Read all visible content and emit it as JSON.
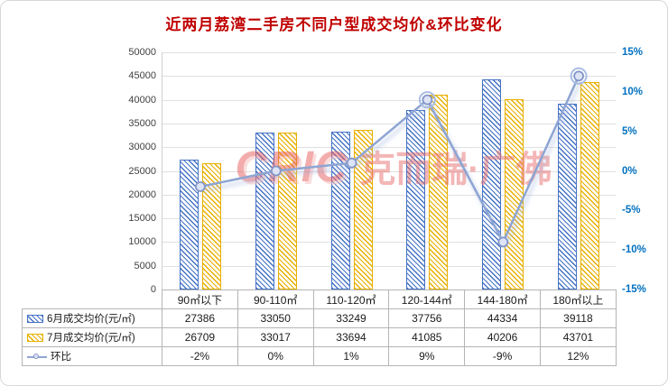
{
  "title": "近两月荔湾二手房不同户型成交均价&环比变化",
  "watermark": {
    "logo": "CRIC",
    "text": "克而瑞·广佛"
  },
  "chart_data": {
    "type": "combo-bar-line",
    "title": "近两月荔湾二手房不同户型成交均价&环比变化",
    "categories": [
      "90㎡以下",
      "90-110㎡",
      "110-120㎡",
      "120-144㎡",
      "144-180㎡",
      "180㎡以上"
    ],
    "series": [
      {
        "name": "6月成交均价(元/㎡)",
        "type": "bar",
        "color": "#4472c4",
        "values": [
          27386,
          33050,
          33249,
          37756,
          44334,
          39118
        ]
      },
      {
        "name": "7月成交均价(元/㎡)",
        "type": "bar",
        "color": "#e7af00",
        "values": [
          26709,
          33017,
          33694,
          41085,
          40206,
          43701
        ]
      },
      {
        "name": "环比",
        "type": "line",
        "color": "#8ea5d3",
        "values_pct": [
          -2,
          0,
          1,
          9,
          -9,
          12
        ],
        "labels": [
          "-2%",
          "0%",
          "1%",
          "9%",
          "-9%",
          "12%"
        ]
      }
    ],
    "left_axis": {
      "min": 0,
      "max": 50000,
      "step": 5000,
      "tick_labels": [
        "50000",
        "45000",
        "40000",
        "35000",
        "30000",
        "25000",
        "20000",
        "15000",
        "10000",
        "5000",
        "0"
      ]
    },
    "right_axis": {
      "min": -15,
      "max": 15,
      "step": 5,
      "tick_labels": [
        "15%",
        "10%",
        "5%",
        "0%",
        "-5%",
        "-10%",
        "-15%"
      ]
    },
    "grid": "horizontal",
    "legend_position": "bottom-table"
  }
}
